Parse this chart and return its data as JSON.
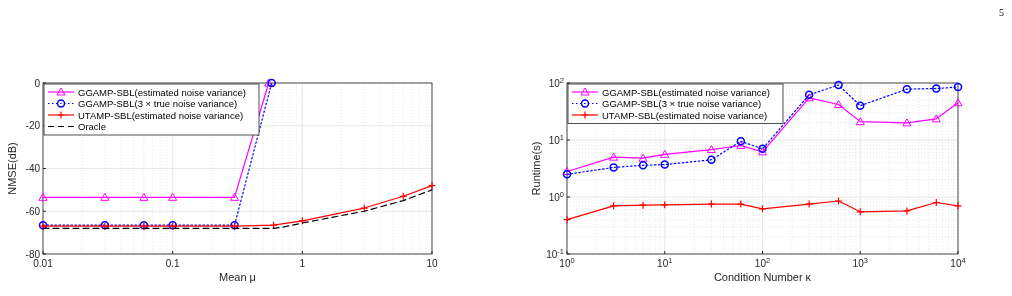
{
  "chart_data": [
    {
      "type": "line",
      "xlabel": "Mean μ",
      "ylabel": "NMSE(dB)",
      "log": "x",
      "xlim": [
        0.01,
        10
      ],
      "xticks": [
        0.01,
        0.1,
        1,
        10
      ],
      "ylim": [
        -80,
        0
      ],
      "yticks": [
        -80,
        -60,
        -40,
        -20,
        0
      ],
      "grid": true,
      "legend": "top left",
      "series": [
        {
          "name": "GGAMP-SBL(estimated noise variance)",
          "color": "#ff00ff",
          "marker": "triangle",
          "line_style": "solid",
          "x": [
            0.01,
            0.03,
            0.06,
            0.1,
            0.3,
            0.55
          ],
          "values": [
            -53.5,
            -53.5,
            -53.5,
            -53.5,
            -53.5,
            0
          ]
        },
        {
          "name": "GGAMP-SBL(3 × true noise variance)",
          "color": "#0000ff",
          "marker": "circle",
          "line_style": "dotted",
          "x": [
            0.01,
            0.03,
            0.06,
            0.1,
            0.3,
            0.58
          ],
          "values": [
            -66.5,
            -66.5,
            -66.5,
            -66.5,
            -66.5,
            0
          ]
        },
        {
          "name": "UTAMP-SBL(estimated noise variance)",
          "color": "#ff0000",
          "marker": "cross",
          "line_style": "solid",
          "x": [
            0.01,
            0.03,
            0.06,
            0.1,
            0.3,
            0.6,
            1,
            3,
            6,
            10
          ],
          "values": [
            -67,
            -67,
            -67,
            -67,
            -67,
            -66.5,
            -64.5,
            -58.5,
            -53,
            -48
          ]
        },
        {
          "name": "Oracle",
          "color": "#000000",
          "marker": "none",
          "line_style": "dashed",
          "x": [
            0.01,
            0.03,
            0.06,
            0.1,
            0.3,
            0.6,
            0.7,
            1,
            3,
            6,
            10
          ],
          "values": [
            -68,
            -68,
            -68,
            -68,
            -68,
            -68,
            -67.5,
            -65.5,
            -60,
            -55,
            -50
          ]
        }
      ]
    },
    {
      "type": "line",
      "xlabel": "Condition Number  κ",
      "ylabel": "Runtime(s)",
      "log": "xy",
      "xlim": [
        1,
        10000
      ],
      "xticks": [
        {
          "value": 1,
          "label": "10$^{0}$"
        },
        {
          "value": 10,
          "label": "10$^{1}$"
        },
        {
          "value": 100,
          "label": "10$^{2}$"
        },
        {
          "value": 1000,
          "label": "10$^{3}$"
        },
        {
          "value": 10000,
          "label": "10$^{4}$"
        }
      ],
      "ylim": [
        0.1,
        100
      ],
      "yticks": [
        {
          "value": 0.1,
          "label": "10$^{-1}$"
        },
        {
          "value": 1,
          "label": "10$^{0}$"
        },
        {
          "value": 10,
          "label": "10$^{1}$"
        },
        {
          "value": 100,
          "label": "10$^{2}$"
        }
      ],
      "grid": true,
      "legend": "top left",
      "annotations": [
        "5"
      ],
      "x": [
        1,
        3,
        6,
        10,
        30,
        60,
        100,
        300,
        600,
        1000,
        3000,
        6000,
        10000
      ],
      "series": [
        {
          "name": "GGAMP-SBL(estimated noise variance)",
          "color": "#ff00ff",
          "marker": "triangle",
          "line_style": "solid",
          "values": [
            2.8,
            5,
            4.8,
            5.6,
            6.8,
            8,
            6.2,
            55,
            42,
            21,
            20,
            23.5,
            45
          ]
        },
        {
          "name": "GGAMP-SBL(3 × true noise variance)",
          "color": "#0000ff",
          "marker": "circle",
          "line_style": "dotted",
          "values": [
            2.5,
            3.3,
            3.6,
            3.7,
            4.5,
            9.5,
            7,
            62,
            92,
            40,
            78,
            80,
            85
          ]
        },
        {
          "name": "UTAMP-SBL(estimated noise variance)",
          "color": "#ff0000",
          "marker": "cross",
          "line_style": "solid",
          "values": [
            0.4,
            0.7,
            0.72,
            0.73,
            0.75,
            0.75,
            0.62,
            0.75,
            0.85,
            0.55,
            0.57,
            0.8,
            0.7
          ]
        }
      ]
    }
  ]
}
